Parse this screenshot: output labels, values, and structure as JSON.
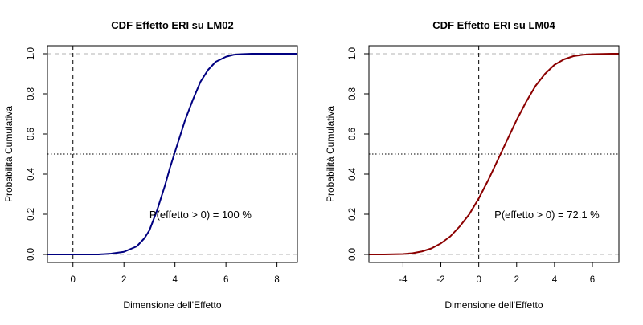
{
  "chart_data": [
    {
      "type": "line",
      "title": "CDF Effetto ERI su LM02",
      "xlabel": "Dimensione dell'Effetto",
      "ylabel": "Probabilità Cumulativa",
      "xlim": [
        -1.0,
        8.8
      ],
      "ylim": [
        -0.04,
        1.04
      ],
      "xticks": [
        0,
        2,
        4,
        6,
        8
      ],
      "xtick_labels": [
        "0",
        "2",
        "4",
        "6",
        "8"
      ],
      "yticks": [
        0.0,
        0.2,
        0.4,
        0.6,
        0.8,
        1.0
      ],
      "ytick_labels": [
        "0.0",
        "0.2",
        "0.4",
        "0.6",
        "0.8",
        "1.0"
      ],
      "line_color": "#000080",
      "series": [
        {
          "x": [
            -1.0,
            0.0,
            1.0,
            1.5,
            2.0,
            2.5,
            2.8,
            3.0,
            3.3,
            3.6,
            3.8,
            4.0,
            4.2,
            4.4,
            4.7,
            5.0,
            5.3,
            5.6,
            6.0,
            6.3,
            6.6,
            7.0,
            7.5,
            8.0,
            8.8
          ],
          "y": [
            0.0,
            0.0,
            0.0,
            0.004,
            0.013,
            0.04,
            0.08,
            0.12,
            0.22,
            0.34,
            0.43,
            0.51,
            0.59,
            0.67,
            0.77,
            0.86,
            0.92,
            0.96,
            0.985,
            0.995,
            0.998,
            1.0,
            1.0,
            1.0,
            1.0
          ]
        }
      ],
      "hlines": [
        {
          "y": 0.0,
          "style": "dashed",
          "color": "#b3b3b3"
        },
        {
          "y": 1.0,
          "style": "dashed",
          "color": "#b3b3b3"
        },
        {
          "y": 0.5,
          "style": "dotted",
          "color": "#000000"
        }
      ],
      "vlines": [
        {
          "x": 0,
          "style": "dashed",
          "color": "#000000"
        }
      ],
      "annotation": {
        "text": "P(effetto > 0) = 100 %",
        "x": 5.0,
        "y": 0.2
      },
      "grid": false,
      "legend": "none"
    },
    {
      "type": "line",
      "title": "CDF Effetto ERI su LM04",
      "xlabel": "Dimensione dell'Effetto",
      "ylabel": "Probabilità Cumulativa",
      "xlim": [
        -5.8,
        7.4
      ],
      "ylim": [
        -0.04,
        1.04
      ],
      "xticks": [
        -4,
        -2,
        0,
        2,
        4,
        6
      ],
      "xtick_labels": [
        "-4",
        "-2",
        "0",
        "2",
        "4",
        "6"
      ],
      "yticks": [
        0.0,
        0.2,
        0.4,
        0.6,
        0.8,
        1.0
      ],
      "ytick_labels": [
        "0.0",
        "0.2",
        "0.4",
        "0.6",
        "0.8",
        "1.0"
      ],
      "line_color": "#8b0000",
      "series": [
        {
          "x": [
            -5.8,
            -5.0,
            -4.0,
            -3.5,
            -3.0,
            -2.5,
            -2.0,
            -1.5,
            -1.0,
            -0.5,
            0.0,
            0.5,
            1.0,
            1.5,
            2.0,
            2.5,
            3.0,
            3.5,
            4.0,
            4.5,
            5.0,
            5.5,
            6.0,
            7.0,
            7.4
          ],
          "y": [
            0.0,
            0.0,
            0.002,
            0.006,
            0.015,
            0.03,
            0.055,
            0.09,
            0.14,
            0.2,
            0.279,
            0.37,
            0.47,
            0.57,
            0.67,
            0.76,
            0.84,
            0.9,
            0.945,
            0.972,
            0.988,
            0.995,
            0.998,
            1.0,
            1.0
          ]
        }
      ],
      "hlines": [
        {
          "y": 0.0,
          "style": "dashed",
          "color": "#b3b3b3"
        },
        {
          "y": 1.0,
          "style": "dashed",
          "color": "#b3b3b3"
        },
        {
          "y": 0.5,
          "style": "dotted",
          "color": "#000000"
        }
      ],
      "vlines": [
        {
          "x": 0,
          "style": "dashed",
          "color": "#000000"
        }
      ],
      "annotation": {
        "text": "P(effetto > 0) = 72.1 %",
        "x": 3.6,
        "y": 0.2
      },
      "grid": false,
      "legend": "none"
    }
  ]
}
